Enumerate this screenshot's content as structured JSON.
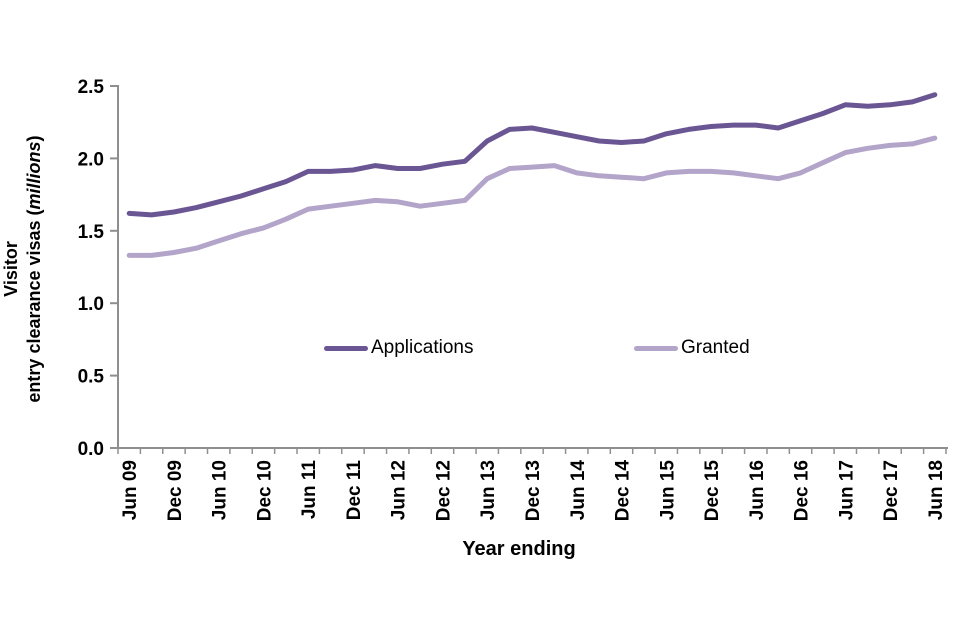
{
  "figure": {
    "x_title": "Year ending",
    "y_title_line1": "Visitor",
    "y_title_line2_pre": "entry clearance visas (",
    "y_title_line2_italic": "millions",
    "y_title_line2_post": ")"
  },
  "colors": {
    "background": "#ffffff",
    "axis": "#8f8f8f",
    "text": "#000000"
  },
  "chart_data": {
    "type": "line",
    "title": "",
    "xlabel": "Year ending",
    "ylabel": "Visitor entry clearance visas (millions)",
    "ylim": [
      0,
      2.5
    ],
    "y_ticks": [
      "0.0",
      "0.5",
      "1.0",
      "1.5",
      "2.0",
      "2.5"
    ],
    "grid": false,
    "legend_position": "inside-middle",
    "x_label_every": 2,
    "x_tick_labels_shown": [
      "Jun 09",
      "Dec 09",
      "Jun 10",
      "Dec 10",
      "Jun 11",
      "Dec 11",
      "Jun 12",
      "Dec 12",
      "Jun 13",
      "Dec 13",
      "Jun 14",
      "Dec 14",
      "Jun 15",
      "Dec 15",
      "Jun 16",
      "Dec 16",
      "Jun 17",
      "Dec 17",
      "Jun 18"
    ],
    "categories": [
      "Jun 09",
      "Sep 09",
      "Dec 09",
      "Mar 10",
      "Jun 10",
      "Sep 10",
      "Dec 10",
      "Mar 11",
      "Jun 11",
      "Sep 11",
      "Dec 11",
      "Mar 12",
      "Jun 12",
      "Sep 12",
      "Dec 12",
      "Mar 13",
      "Jun 13",
      "Sep 13",
      "Dec 13",
      "Mar 14",
      "Jun 14",
      "Sep 14",
      "Dec 14",
      "Mar 15",
      "Jun 15",
      "Sep 15",
      "Dec 15",
      "Mar 16",
      "Jun 16",
      "Sep 16",
      "Dec 16",
      "Mar 17",
      "Jun 17",
      "Sep 17",
      "Dec 17",
      "Mar 18",
      "Jun 18"
    ],
    "series": [
      {
        "name": "Applications",
        "color": "#6b5694",
        "values": [
          1.62,
          1.61,
          1.63,
          1.66,
          1.7,
          1.74,
          1.79,
          1.84,
          1.91,
          1.91,
          1.92,
          1.95,
          1.93,
          1.93,
          1.96,
          1.98,
          2.12,
          2.2,
          2.21,
          2.18,
          2.15,
          2.12,
          2.11,
          2.12,
          2.17,
          2.2,
          2.22,
          2.23,
          2.23,
          2.21,
          2.26,
          2.31,
          2.37,
          2.36,
          2.37,
          2.39,
          2.44
        ]
      },
      {
        "name": "Granted",
        "color": "#b3a4ca",
        "values": [
          1.33,
          1.33,
          1.35,
          1.38,
          1.43,
          1.48,
          1.52,
          1.58,
          1.65,
          1.67,
          1.69,
          1.71,
          1.7,
          1.67,
          1.69,
          1.71,
          1.86,
          1.93,
          1.94,
          1.95,
          1.9,
          1.88,
          1.87,
          1.86,
          1.9,
          1.91,
          1.91,
          1.9,
          1.88,
          1.86,
          1.9,
          1.97,
          2.04,
          2.07,
          2.09,
          2.1,
          2.14
        ]
      }
    ]
  }
}
